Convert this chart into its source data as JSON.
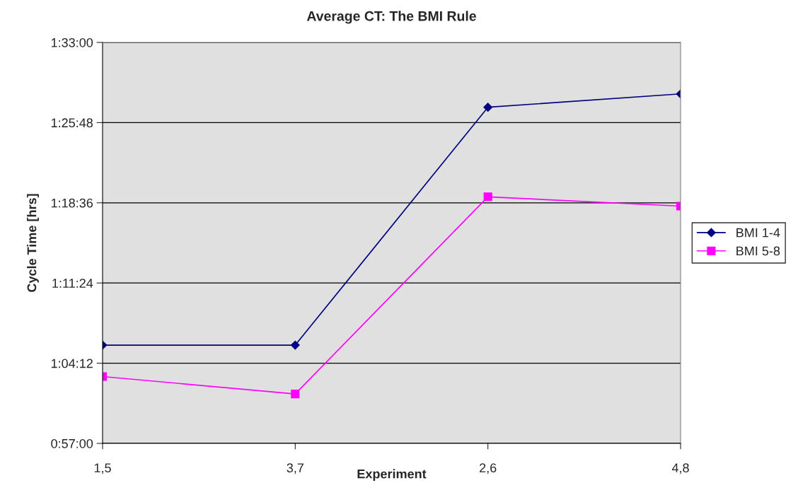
{
  "chart_data": {
    "type": "line",
    "title": "Average CT: The BMI Rule",
    "xlabel": "Experiment",
    "ylabel": "Cycle Time [hrs]",
    "categories": [
      "1,5",
      "3,7",
      "2,6",
      "4,8"
    ],
    "series": [
      {
        "name": "BMI 1-4",
        "color": "#000080",
        "marker": "diamond",
        "values": [
          1.097,
          1.097,
          1.453,
          1.473
        ]
      },
      {
        "name": "BMI 5-8",
        "color": "#ff00ff",
        "marker": "square",
        "values": [
          1.05,
          1.024,
          1.319,
          1.305
        ]
      }
    ],
    "ylim": [
      0.95,
      1.55
    ],
    "yticks": [
      {
        "value": 0.95,
        "label": "0:57:00"
      },
      {
        "value": 1.07,
        "label": "1:04:12"
      },
      {
        "value": 1.19,
        "label": "1:11:24"
      },
      {
        "value": 1.31,
        "label": "1:18:36"
      },
      {
        "value": 1.43,
        "label": "1:25:48"
      },
      {
        "value": 1.55,
        "label": "1:33:00"
      }
    ],
    "grid": "y",
    "legend": "right",
    "line_style": "solid"
  }
}
